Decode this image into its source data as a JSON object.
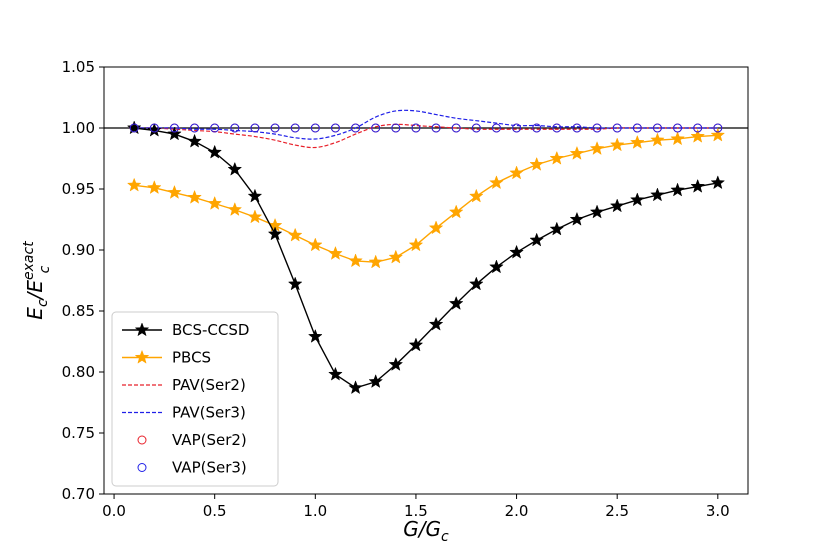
{
  "chart_data": {
    "type": "line",
    "title": "",
    "xlabel": "G/G",
    "xlabel_sub": "c",
    "ylabel": "E",
    "ylabel_sub": "c",
    "ylabel_mid": "/E",
    "ylabel_sup": "exact",
    "xlim": [
      -0.05,
      3.15
    ],
    "ylim": [
      0.7,
      1.05
    ],
    "xticks": [
      0.0,
      0.5,
      1.0,
      1.5,
      2.0,
      2.5,
      3.0
    ],
    "xtick_labels": [
      "0.0",
      "0.5",
      "1.0",
      "1.5",
      "2.0",
      "2.5",
      "3.0"
    ],
    "yticks": [
      0.7,
      0.75,
      0.8,
      0.85,
      0.9,
      0.95,
      1.0,
      1.05
    ],
    "ytick_labels": [
      "0.70",
      "0.75",
      "0.80",
      "0.85",
      "0.90",
      "0.95",
      "1.00",
      "1.05"
    ],
    "reference_line": 1.0,
    "legend_position": "lower-left",
    "x": [
      0.1,
      0.2,
      0.3,
      0.4,
      0.5,
      0.6,
      0.7,
      0.8,
      0.9,
      1.0,
      1.1,
      1.2,
      1.3,
      1.4,
      1.5,
      1.6,
      1.7,
      1.8,
      1.9,
      2.0,
      2.1,
      2.2,
      2.3,
      2.4,
      2.5,
      2.6,
      2.7,
      2.8,
      2.9,
      3.0
    ],
    "series": [
      {
        "name": "BCS-CCSD",
        "color": "#000000",
        "style": "solid-star",
        "values": [
          1.0,
          0.998,
          0.995,
          0.989,
          0.98,
          0.966,
          0.944,
          0.913,
          0.872,
          0.829,
          0.798,
          0.787,
          0.792,
          0.806,
          0.822,
          0.839,
          0.856,
          0.872,
          0.886,
          0.898,
          0.908,
          0.917,
          0.925,
          0.931,
          0.936,
          0.941,
          0.945,
          0.949,
          0.952,
          0.955
        ]
      },
      {
        "name": "PBCS",
        "color": "#ffa500",
        "style": "solid-star",
        "values": [
          0.953,
          0.951,
          0.947,
          0.943,
          0.938,
          0.933,
          0.927,
          0.92,
          0.912,
          0.904,
          0.897,
          0.891,
          0.89,
          0.894,
          0.904,
          0.918,
          0.931,
          0.944,
          0.955,
          0.963,
          0.97,
          0.975,
          0.979,
          0.983,
          0.986,
          0.988,
          0.99,
          0.991,
          0.993,
          0.994
        ]
      },
      {
        "name": "PAV(Ser2)",
        "color": "#e8202a",
        "style": "dashed",
        "values": [
          1.0,
          1.0,
          0.999,
          0.998,
          0.997,
          0.995,
          0.993,
          0.99,
          0.986,
          0.984,
          0.988,
          0.995,
          1.001,
          1.003,
          1.002,
          1.001,
          1.0,
          0.999,
          0.999,
          0.999,
          0.999,
          0.999,
          0.999,
          0.999,
          1.0,
          1.0,
          1.0,
          1.0,
          1.0,
          1.0
        ]
      },
      {
        "name": "PAV(Ser3)",
        "color": "#2020e8",
        "style": "dashed",
        "values": [
          1.0,
          1.0,
          1.0,
          0.999,
          0.999,
          0.998,
          0.997,
          0.995,
          0.992,
          0.991,
          0.994,
          1.0,
          1.009,
          1.014,
          1.014,
          1.011,
          1.008,
          1.006,
          1.004,
          1.002,
          1.002,
          1.001,
          1.001,
          1.0,
          1.0,
          1.0,
          1.0,
          1.0,
          1.0,
          1.0
        ]
      },
      {
        "name": "VAP(Ser2)",
        "color": "#e8202a",
        "style": "circles",
        "values": [
          1.0,
          1.0,
          1.0,
          1.0,
          1.0,
          1.0,
          1.0,
          1.0,
          1.0,
          1.0,
          1.0,
          1.0,
          1.0,
          1.0,
          1.0,
          1.0,
          1.0,
          1.0,
          1.0,
          1.0,
          1.0,
          1.0,
          1.0,
          1.0,
          1.0,
          1.0,
          1.0,
          1.0,
          1.0,
          1.0
        ]
      },
      {
        "name": "VAP(Ser3)",
        "color": "#2020e8",
        "style": "circles",
        "values": [
          1.0,
          1.0,
          1.0,
          1.0,
          1.0,
          1.0,
          1.0,
          1.0,
          1.0,
          1.0,
          1.0,
          1.0,
          1.0,
          1.0,
          1.0,
          1.0,
          1.0,
          1.0,
          1.0,
          1.0,
          1.0,
          1.0,
          1.0,
          1.0,
          1.0,
          1.0,
          1.0,
          1.0,
          1.0,
          1.0
        ]
      }
    ]
  }
}
